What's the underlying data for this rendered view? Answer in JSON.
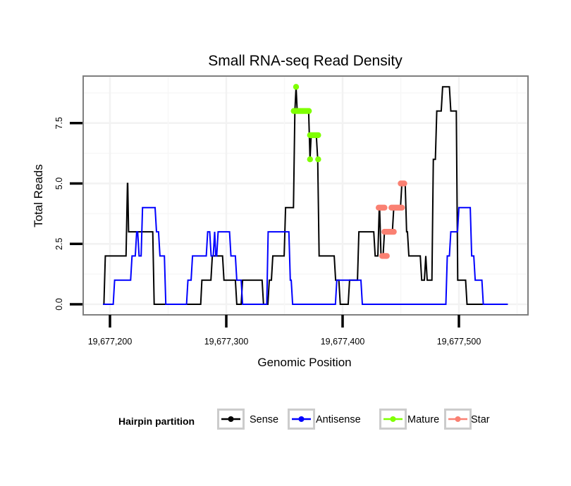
{
  "chart_data": {
    "type": "line",
    "title": "Small RNA-seq Read Density",
    "xlabel": "Genomic Position",
    "ylabel": "Total Reads",
    "xlim": [
      19677173,
      19677562
    ],
    "ylim": [
      -0.45,
      9.25
    ],
    "x_ticks": [
      19677200,
      19677300,
      19677400,
      19677500
    ],
    "x_tick_labels": [
      "19,677,200",
      "19,677,300",
      "19,677,400",
      "19,677,500"
    ],
    "y_ticks": [
      0,
      2.5,
      5,
      7.5
    ],
    "y_tick_labels": [
      "0.0",
      "2.5",
      "5.0",
      "7.5"
    ],
    "grid": true,
    "legend": {
      "title": "Hairpin partition",
      "position": "bottom",
      "entries": [
        {
          "label": "Sense",
          "color": "#000000"
        },
        {
          "label": "Antisense",
          "color": "#0000ff"
        },
        {
          "label": "Mature",
          "color": "#7fff00"
        },
        {
          "label": "Star",
          "color": "#fa8072"
        }
      ]
    },
    "series": [
      {
        "name": "Sense",
        "kind": "step-line",
        "color": "#000000",
        "x": [
          19677194,
          19677196,
          19677215,
          19677215.3,
          19677216,
          19677236,
          19677238,
          19677278,
          19677279,
          19677288,
          19677298,
          19677309,
          19677314,
          19677332,
          19677337,
          19677340,
          19677351,
          19677359,
          19677360,
          19677361,
          19677372,
          19677373,
          19677378.6,
          19677379.8,
          19677394,
          19677398,
          19677406,
          19677414,
          19677428,
          19677431.5,
          19677433,
          19677436,
          19677444,
          19677451,
          19677455,
          19677457,
          19677468,
          19677471.5,
          19677472.7,
          19677478,
          19677481,
          19677486,
          19677493,
          19677499,
          19677507,
          19677542
        ],
        "y": [
          0,
          2,
          5,
          5,
          3,
          3,
          0,
          0,
          1,
          2,
          1,
          0,
          1,
          0,
          1,
          2,
          4,
          8,
          9,
          8,
          6,
          7,
          6,
          2,
          1,
          0,
          1,
          3,
          2,
          4,
          2,
          3,
          4,
          5,
          3,
          2,
          1,
          2,
          1,
          6,
          8,
          9,
          8,
          1,
          0,
          0
        ]
      },
      {
        "name": "Antisense",
        "kind": "step-line",
        "color": "#0000ff",
        "x": [
          19677194,
          19677204,
          19677219,
          19677223,
          19677225,
          19677228,
          19677240,
          19677243,
          19677248,
          19677267,
          19677271,
          19677284,
          19677287,
          19677290,
          19677291,
          19677293,
          19677304,
          19677309,
          19677314,
          19677336,
          19677355,
          19677357,
          19677395,
          19677417,
          19677490,
          19677493,
          19677500,
          19677511,
          19677514,
          19677521,
          19677542
        ],
        "y": [
          0,
          1,
          2,
          3,
          2,
          4,
          3,
          2,
          0,
          1,
          2,
          3,
          2,
          3,
          2,
          3,
          2,
          1,
          0,
          3,
          1,
          0,
          1,
          0,
          2,
          3,
          4,
          2,
          1,
          0,
          0
        ]
      },
      {
        "name": "Mature",
        "kind": "points",
        "color": "#7fff00",
        "x": [
          19677360,
          19677358,
          19677359,
          19677360,
          19677361,
          19677362,
          19677363,
          19677364,
          19677365,
          19677366,
          19677367,
          19677368,
          19677369,
          19677370,
          19677371,
          19677372,
          19677373,
          19677374,
          19677375,
          19677376,
          19677377,
          19677378,
          19677379,
          19677372,
          19677379
        ],
        "y": [
          9,
          8,
          8,
          8,
          8,
          8,
          8,
          8,
          8,
          8,
          8,
          8,
          8,
          8,
          8,
          7,
          7,
          7,
          7,
          7,
          7,
          7,
          7,
          6,
          6
        ]
      },
      {
        "name": "Star",
        "kind": "points",
        "color": "#fa8072",
        "x": [
          19677431,
          19677432,
          19677433,
          19677434,
          19677435,
          19677436,
          19677434,
          19677435,
          19677436,
          19677437,
          19677438,
          19677436,
          19677437,
          19677438,
          19677439,
          19677440,
          19677441,
          19677442,
          19677443,
          19677444,
          19677442,
          19677443,
          19677444,
          19677445,
          19677446,
          19677447,
          19677448,
          19677449,
          19677450,
          19677451,
          19677450,
          19677451,
          19677452,
          19677453
        ],
        "y": [
          4,
          4,
          4,
          4,
          4,
          4,
          2,
          2,
          2,
          2,
          2,
          3,
          3,
          3,
          3,
          3,
          3,
          3,
          3,
          3,
          4,
          4,
          4,
          4,
          4,
          4,
          4,
          4,
          4,
          4,
          5,
          5,
          5,
          5
        ]
      }
    ]
  }
}
